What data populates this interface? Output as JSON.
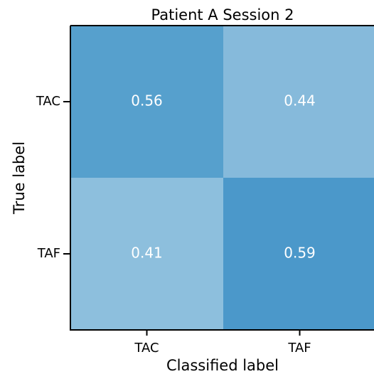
{
  "chart_data": {
    "type": "heatmap",
    "title": "Patient A Session 2",
    "x_label": "Classified label",
    "y_label": "True label",
    "x_categories": [
      "TAC",
      "TAF"
    ],
    "y_categories": [
      "TAC",
      "TAF"
    ],
    "values": [
      [
        0.56,
        0.44
      ],
      [
        0.41,
        0.59
      ]
    ],
    "cell_colors": [
      [
        "#56a0cd",
        "#86badb"
      ],
      [
        "#8dbfdd",
        "#4b98ca"
      ]
    ],
    "value_label_color": "#ffffff"
  }
}
